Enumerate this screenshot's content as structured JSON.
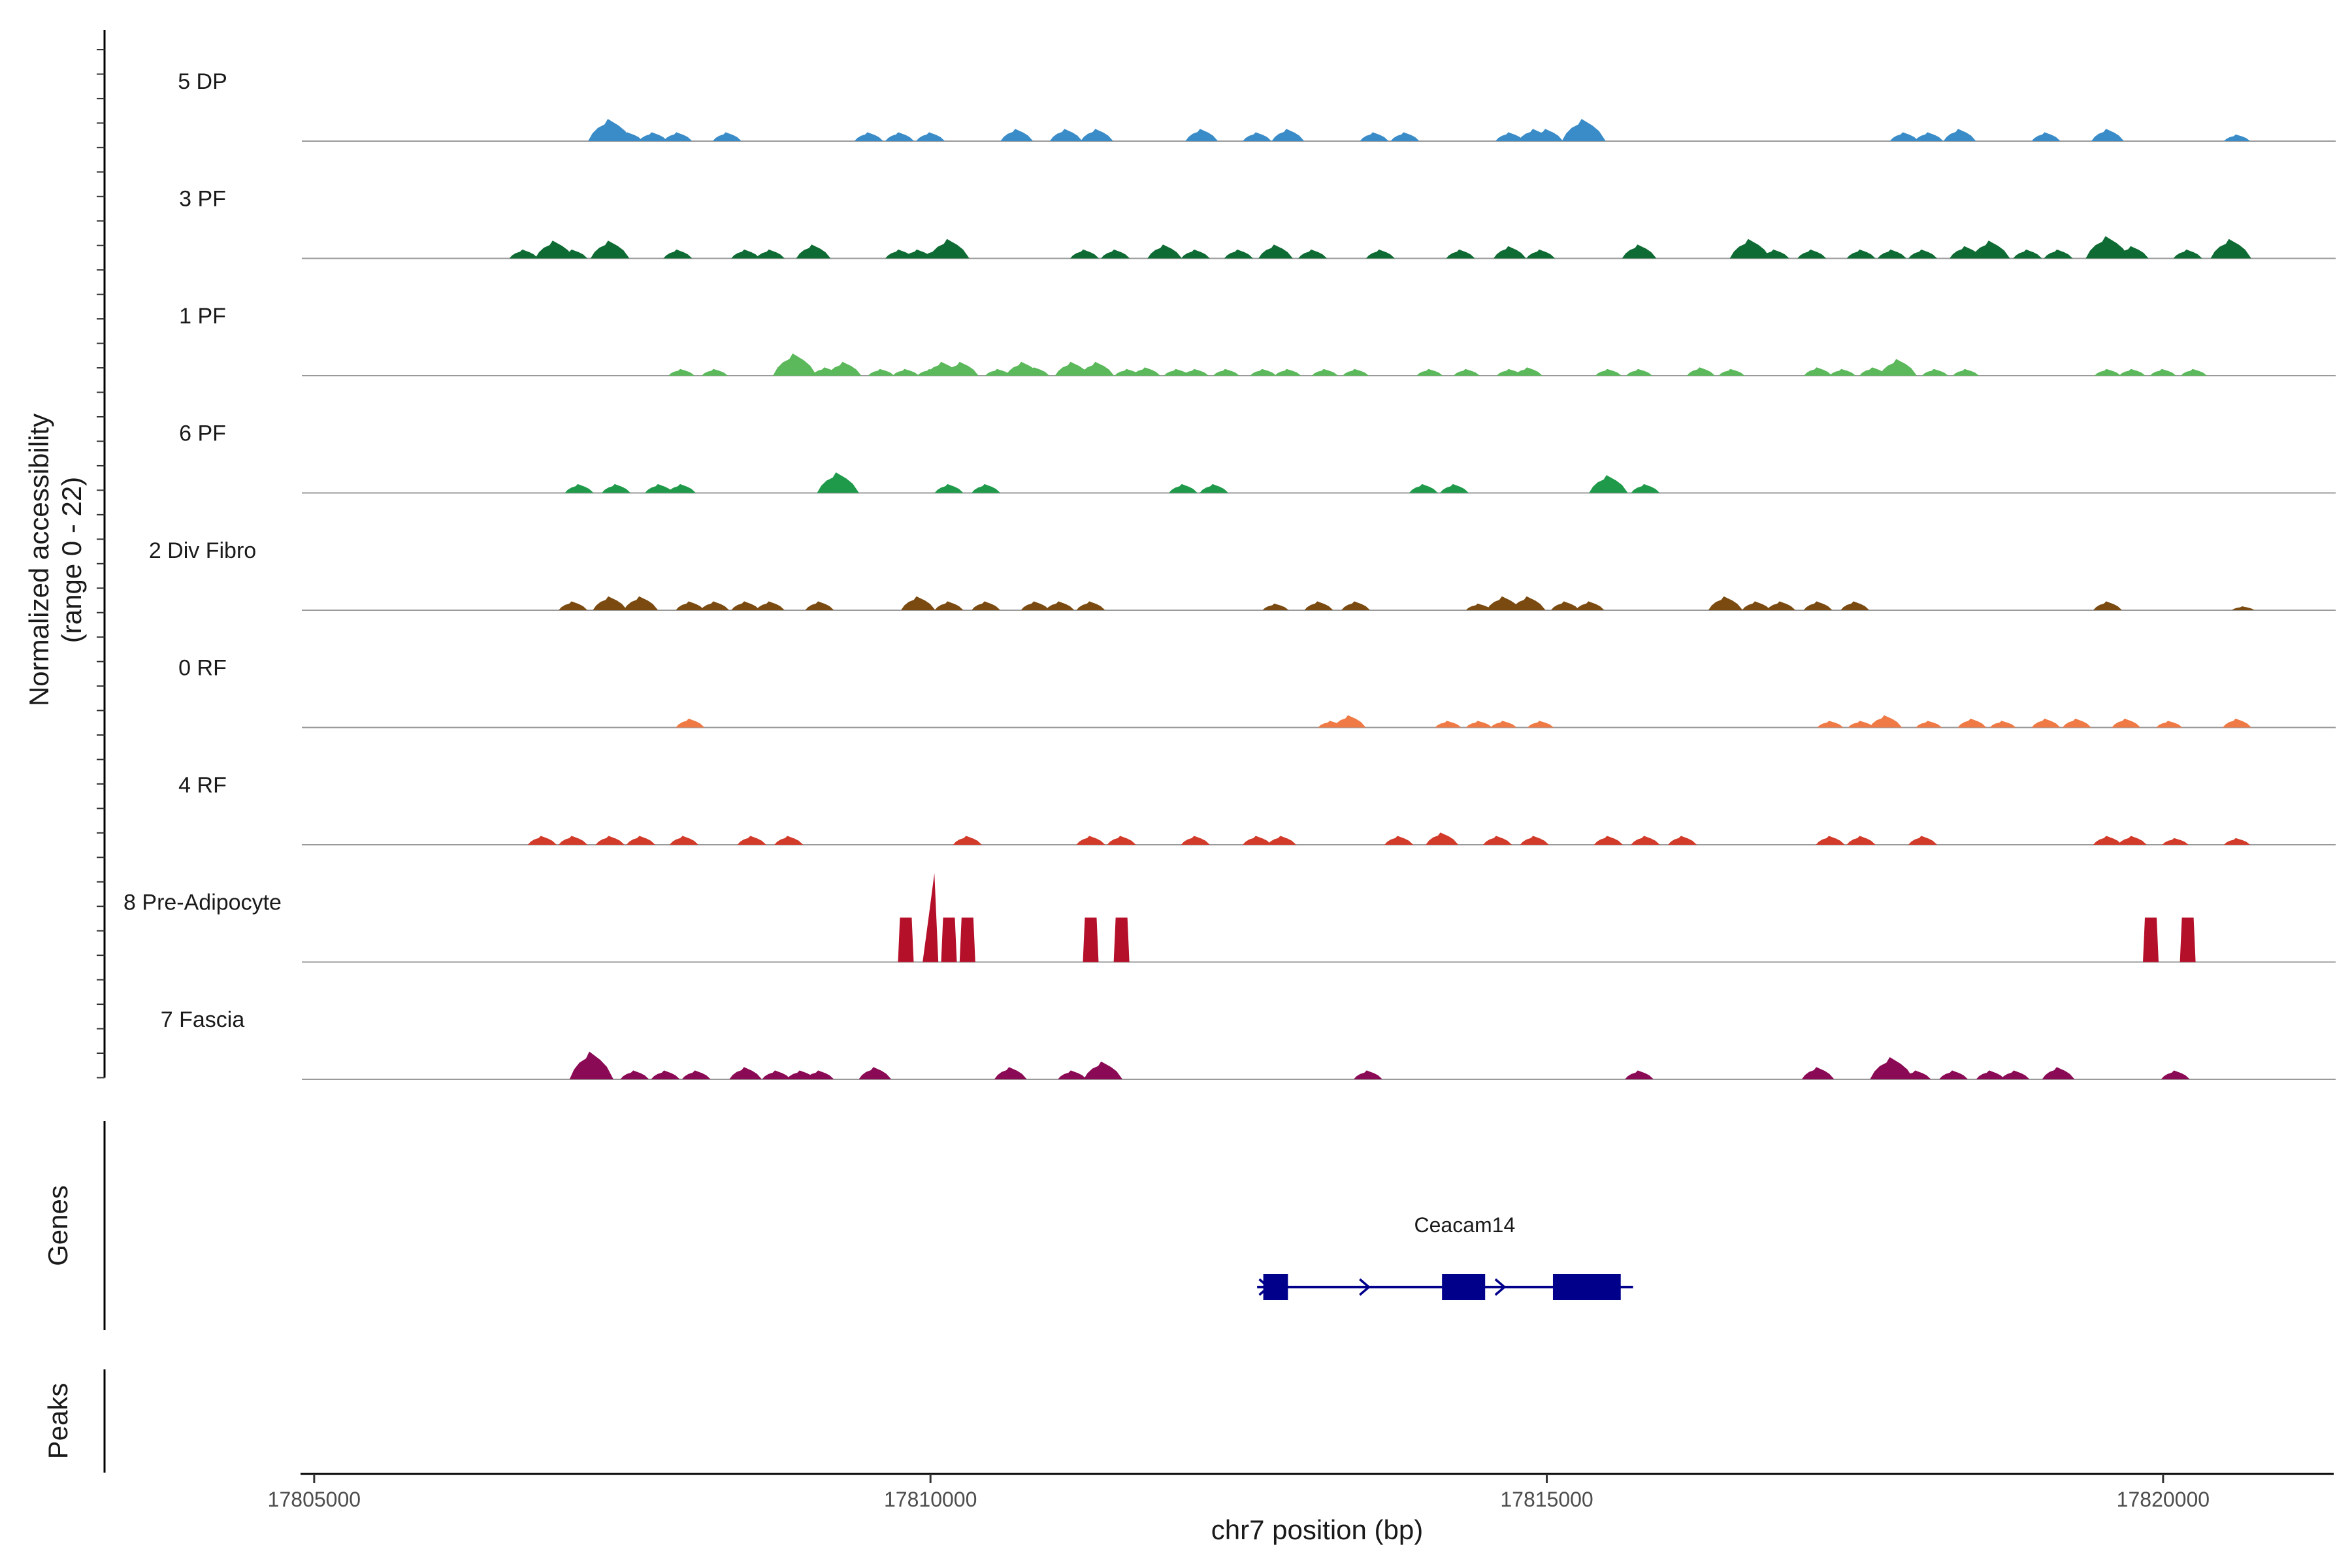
{
  "chart_data": {
    "type": "area",
    "title": "",
    "xlabel": "chr7 position (bp)",
    "ylabel": "Normalized accessibility",
    "ylabel_sub": "(range 0 - 22)",
    "xlim": [
      17804900,
      17821400
    ],
    "ylim": [
      0,
      22
    ],
    "x_ticks": [
      17805000,
      17810000,
      17815000,
      17820000
    ],
    "x_tick_labels": [
      "17805000",
      "17810000",
      "17815000",
      "17820000"
    ],
    "panel_labels": {
      "genes": "Genes",
      "peaks": "Peaks"
    },
    "tracks": [
      {
        "name": "5 DP",
        "color": "#3a8cc8",
        "peaks": [
          [
            17807400,
            4
          ],
          [
            17807550,
            1.6
          ],
          [
            17807750,
            1.6
          ],
          [
            17807950,
            1.6
          ],
          [
            17808350,
            1.6
          ],
          [
            17809500,
            1.6
          ],
          [
            17809750,
            1.6
          ],
          [
            17810000,
            1.6
          ],
          [
            17810700,
            2.2
          ],
          [
            17811100,
            2.2
          ],
          [
            17811350,
            2.2
          ],
          [
            17812200,
            2.2
          ],
          [
            17812650,
            1.6
          ],
          [
            17812900,
            2.2
          ],
          [
            17813600,
            1.6
          ],
          [
            17813850,
            1.6
          ],
          [
            17814700,
            1.6
          ],
          [
            17814900,
            2.2
          ],
          [
            17815000,
            2.2
          ],
          [
            17815300,
            4
          ],
          [
            17817900,
            1.6
          ],
          [
            17818100,
            1.6
          ],
          [
            17818350,
            2.2
          ],
          [
            17819050,
            1.6
          ],
          [
            17819550,
            2.2
          ],
          [
            17820600,
            1.2
          ]
        ]
      },
      {
        "name": "3 PF",
        "color": "#0e6b33",
        "peaks": [
          [
            17806700,
            1.6
          ],
          [
            17806950,
            3.2
          ],
          [
            17807100,
            1.6
          ],
          [
            17807400,
            3.2
          ],
          [
            17807950,
            1.6
          ],
          [
            17808500,
            1.6
          ],
          [
            17808700,
            1.6
          ],
          [
            17809050,
            2.5
          ],
          [
            17809750,
            1.6
          ],
          [
            17809900,
            1.6
          ],
          [
            17810050,
            1.6
          ],
          [
            17810150,
            3.5
          ],
          [
            17811250,
            1.6
          ],
          [
            17811500,
            1.6
          ],
          [
            17811900,
            2.5
          ],
          [
            17812150,
            1.6
          ],
          [
            17812500,
            1.6
          ],
          [
            17812800,
            2.5
          ],
          [
            17813100,
            1.6
          ],
          [
            17813650,
            1.6
          ],
          [
            17814300,
            1.6
          ],
          [
            17814700,
            2.2
          ],
          [
            17814950,
            1.6
          ],
          [
            17815750,
            2.5
          ],
          [
            17816650,
            3.5
          ],
          [
            17816850,
            1.6
          ],
          [
            17817150,
            1.6
          ],
          [
            17817550,
            1.6
          ],
          [
            17817800,
            1.6
          ],
          [
            17818050,
            1.6
          ],
          [
            17818400,
            2.2
          ],
          [
            17818600,
            3.2
          ],
          [
            17818900,
            1.6
          ],
          [
            17819150,
            1.6
          ],
          [
            17819550,
            4
          ],
          [
            17819750,
            2.2
          ],
          [
            17820200,
            1.6
          ],
          [
            17820550,
            3.5
          ]
        ]
      },
      {
        "name": "1 PF",
        "color": "#5bb85b",
        "peaks": [
          [
            17807980,
            1.2
          ],
          [
            17808250,
            1.2
          ],
          [
            17808900,
            4
          ],
          [
            17809150,
            1.5
          ],
          [
            17809300,
            2.5
          ],
          [
            17809600,
            1.2
          ],
          [
            17809800,
            1.2
          ],
          [
            17810000,
            1.2
          ],
          [
            17810100,
            2.5
          ],
          [
            17810250,
            2.5
          ],
          [
            17810550,
            1.2
          ],
          [
            17810750,
            2.5
          ],
          [
            17810850,
            1.5
          ],
          [
            17811150,
            2.5
          ],
          [
            17811350,
            2.5
          ],
          [
            17811600,
            1.2
          ],
          [
            17811750,
            1.5
          ],
          [
            17812000,
            1.2
          ],
          [
            17812150,
            1.2
          ],
          [
            17812400,
            1.2
          ],
          [
            17812700,
            1.2
          ],
          [
            17812900,
            1.2
          ],
          [
            17813200,
            1.2
          ],
          [
            17813450,
            1.2
          ],
          [
            17814050,
            1.2
          ],
          [
            17814350,
            1.2
          ],
          [
            17814700,
            1.2
          ],
          [
            17814850,
            1.5
          ],
          [
            17815500,
            1.2
          ],
          [
            17815750,
            1.2
          ],
          [
            17816250,
            1.5
          ],
          [
            17816500,
            1.2
          ],
          [
            17817200,
            1.5
          ],
          [
            17817400,
            1.2
          ],
          [
            17817650,
            1.5
          ],
          [
            17817850,
            3
          ],
          [
            17818150,
            1.2
          ],
          [
            17818400,
            1.2
          ],
          [
            17819550,
            1.2
          ],
          [
            17819750,
            1.2
          ],
          [
            17820000,
            1.2
          ],
          [
            17820250,
            1.2
          ]
        ]
      },
      {
        "name": "6 PF",
        "color": "#1f9a4a",
        "peaks": [
          [
            17807150,
            1.6
          ],
          [
            17807450,
            1.6
          ],
          [
            17807800,
            1.6
          ],
          [
            17807980,
            1.6
          ],
          [
            17809250,
            3.7
          ],
          [
            17810150,
            1.6
          ],
          [
            17810450,
            1.6
          ],
          [
            17812050,
            1.6
          ],
          [
            17812300,
            1.6
          ],
          [
            17814000,
            1.6
          ],
          [
            17814250,
            1.6
          ],
          [
            17815500,
            3.2
          ],
          [
            17815800,
            1.6
          ]
        ]
      },
      {
        "name": "2 Div Fibro",
        "color": "#7a4a10",
        "peaks": [
          [
            17807100,
            1.6
          ],
          [
            17807400,
            2.5
          ],
          [
            17807650,
            2.5
          ],
          [
            17808050,
            1.6
          ],
          [
            17808250,
            1.6
          ],
          [
            17808500,
            1.6
          ],
          [
            17808700,
            1.6
          ],
          [
            17809100,
            1.6
          ],
          [
            17809900,
            2.5
          ],
          [
            17810150,
            1.6
          ],
          [
            17810450,
            1.6
          ],
          [
            17810850,
            1.6
          ],
          [
            17811050,
            1.6
          ],
          [
            17811300,
            1.6
          ],
          [
            17812800,
            1.2
          ],
          [
            17813150,
            1.6
          ],
          [
            17813450,
            1.6
          ],
          [
            17814450,
            1.2
          ],
          [
            17814650,
            2.5
          ],
          [
            17814850,
            2.5
          ],
          [
            17815150,
            1.6
          ],
          [
            17815350,
            1.6
          ],
          [
            17816450,
            2.5
          ],
          [
            17816700,
            1.6
          ],
          [
            17816900,
            1.6
          ],
          [
            17817200,
            1.6
          ],
          [
            17817500,
            1.6
          ],
          [
            17819550,
            1.6
          ],
          [
            17820650,
            0.7
          ]
        ]
      },
      {
        "name": "0 RF",
        "color": "#ef7a45",
        "peaks": [
          [
            17808050,
            1.6
          ],
          [
            17813250,
            1.2
          ],
          [
            17813400,
            2.2
          ],
          [
            17814200,
            1.2
          ],
          [
            17814450,
            1.2
          ],
          [
            17814650,
            1.2
          ],
          [
            17814950,
            1.2
          ],
          [
            17817300,
            1.2
          ],
          [
            17817550,
            1.2
          ],
          [
            17817750,
            2.2
          ],
          [
            17818100,
            1.2
          ],
          [
            17818450,
            1.6
          ],
          [
            17818700,
            1.2
          ],
          [
            17819050,
            1.6
          ],
          [
            17819300,
            1.6
          ],
          [
            17819700,
            1.6
          ],
          [
            17820050,
            1.2
          ],
          [
            17820600,
            1.6
          ]
        ]
      },
      {
        "name": "4 RF",
        "color": "#d23a2a",
        "peaks": [
          [
            17806850,
            1.6
          ],
          [
            17807100,
            1.6
          ],
          [
            17807400,
            1.6
          ],
          [
            17807650,
            1.6
          ],
          [
            17808000,
            1.6
          ],
          [
            17808550,
            1.6
          ],
          [
            17808850,
            1.6
          ],
          [
            17810300,
            1.6
          ],
          [
            17811300,
            1.6
          ],
          [
            17811550,
            1.6
          ],
          [
            17812150,
            1.6
          ],
          [
            17812650,
            1.6
          ],
          [
            17812850,
            1.6
          ],
          [
            17813800,
            1.6
          ],
          [
            17814150,
            2.2
          ],
          [
            17814600,
            1.6
          ],
          [
            17814900,
            1.6
          ],
          [
            17815500,
            1.6
          ],
          [
            17815800,
            1.6
          ],
          [
            17816100,
            1.6
          ],
          [
            17817300,
            1.6
          ],
          [
            17817550,
            1.6
          ],
          [
            17818050,
            1.6
          ],
          [
            17819550,
            1.6
          ],
          [
            17819750,
            1.6
          ],
          [
            17820100,
            1.2
          ],
          [
            17820600,
            1.2
          ]
        ]
      },
      {
        "name": "8 Pre-Adipocyte",
        "color": "#b5102a",
        "peaks": [
          [
            17809800,
            8
          ],
          [
            17810000,
            16
          ],
          [
            17810150,
            8
          ],
          [
            17810300,
            8
          ],
          [
            17811300,
            8
          ],
          [
            17811550,
            8
          ],
          [
            17819900,
            8
          ],
          [
            17820200,
            8
          ]
        ]
      },
      {
        "name": "7 Fascia",
        "color": "#8b0a55",
        "peaks": [
          [
            17807250,
            5
          ],
          [
            17807600,
            1.6
          ],
          [
            17807850,
            1.6
          ],
          [
            17808100,
            1.6
          ],
          [
            17808500,
            2.2
          ],
          [
            17808750,
            1.6
          ],
          [
            17808950,
            1.6
          ],
          [
            17809100,
            1.6
          ],
          [
            17809550,
            2.2
          ],
          [
            17810650,
            2.2
          ],
          [
            17811150,
            1.6
          ],
          [
            17811400,
            3.2
          ],
          [
            17813550,
            1.6
          ],
          [
            17815750,
            1.6
          ],
          [
            17817200,
            2.2
          ],
          [
            17817800,
            4
          ],
          [
            17818000,
            1.6
          ],
          [
            17818300,
            1.6
          ],
          [
            17818600,
            1.6
          ],
          [
            17818800,
            1.6
          ],
          [
            17819150,
            2.2
          ],
          [
            17820100,
            1.6
          ]
        ]
      }
    ],
    "genes": [
      {
        "name": "Ceacam14",
        "strand": "+",
        "color": "#00008b",
        "start": 17812650,
        "end": 17815700,
        "exons": [
          [
            17812700,
            17812900
          ],
          [
            17814150,
            17814500
          ],
          [
            17815050,
            17815600
          ]
        ]
      }
    ]
  }
}
